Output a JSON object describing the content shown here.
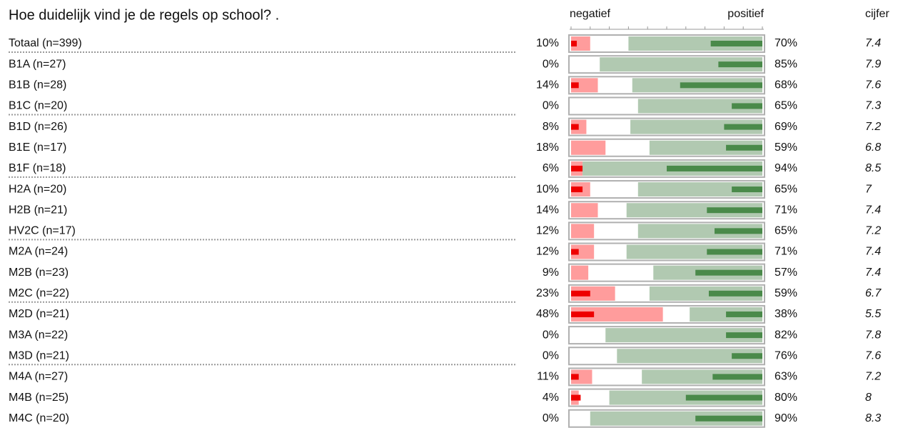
{
  "chart_data": {
    "type": "diverging-bar",
    "title": "Hoe duidelijk vind je de regels op school? .",
    "categories": [
      "Totaal (n=399)",
      "B1A (n=27)",
      "B1B (n=28)",
      "B1C (n=20)",
      "B1D (n=26)",
      "B1E (n=17)",
      "B1F (n=18)",
      "H2A (n=20)",
      "H2B (n=21)",
      "HV2C (n=17)",
      "M2A (n=24)",
      "M2B (n=23)",
      "M2C (n=22)",
      "M2D (n=21)",
      "M3A (n=22)",
      "M3D (n=21)",
      "M4A (n=27)",
      "M4B (n=25)",
      "M4C (n=20)"
    ],
    "series": [
      {
        "name": "negatief",
        "color": "#ff9c9c",
        "side": "left",
        "values": [
          10,
          0,
          14,
          0,
          8,
          18,
          6,
          10,
          14,
          12,
          12,
          9,
          23,
          48,
          0,
          0,
          11,
          4,
          0
        ],
        "value_labels": [
          "10%",
          "0%",
          "14%",
          "0%",
          "8%",
          "18%",
          "6%",
          "10%",
          "14%",
          "12%",
          "12%",
          "9%",
          "23%",
          "48%",
          "0%",
          "0%",
          "11%",
          "4%",
          "0%"
        ]
      },
      {
        "name": "positief",
        "color": "#b1c9b1",
        "side": "right",
        "values": [
          70,
          85,
          68,
          65,
          69,
          59,
          94,
          65,
          71,
          65,
          71,
          57,
          59,
          38,
          82,
          76,
          63,
          80,
          90
        ],
        "value_labels": [
          "70%",
          "85%",
          "68%",
          "65%",
          "69%",
          "59%",
          "94%",
          "65%",
          "71%",
          "65%",
          "71%",
          "57%",
          "59%",
          "38%",
          "82%",
          "76%",
          "63%",
          "80%",
          "90%"
        ]
      },
      {
        "color": "#ee0000",
        "side": "left",
        "strong": true,
        "values": [
          3,
          0,
          4,
          0,
          4,
          0,
          6,
          6,
          0,
          0,
          4,
          0,
          10,
          12,
          0,
          0,
          4,
          5,
          0
        ]
      },
      {
        "color": "#4a8a4a",
        "side": "right",
        "strong": true,
        "values": [
          27,
          23,
          43,
          16,
          20,
          19,
          50,
          16,
          29,
          25,
          29,
          35,
          28,
          19,
          19,
          16,
          26,
          40,
          35
        ]
      }
    ],
    "score": {
      "name": "cijfer",
      "values": [
        7.4,
        7.9,
        7.6,
        7.3,
        7.2,
        6.8,
        8.5,
        7,
        7.4,
        7.2,
        7.4,
        7.4,
        6.7,
        5.5,
        7.8,
        7.6,
        7.2,
        8,
        8.3
      ]
    },
    "xlim": [
      0,
      100
    ],
    "xticks": [
      0,
      10,
      20,
      30,
      40,
      50,
      60,
      70,
      80,
      90,
      100
    ]
  }
}
